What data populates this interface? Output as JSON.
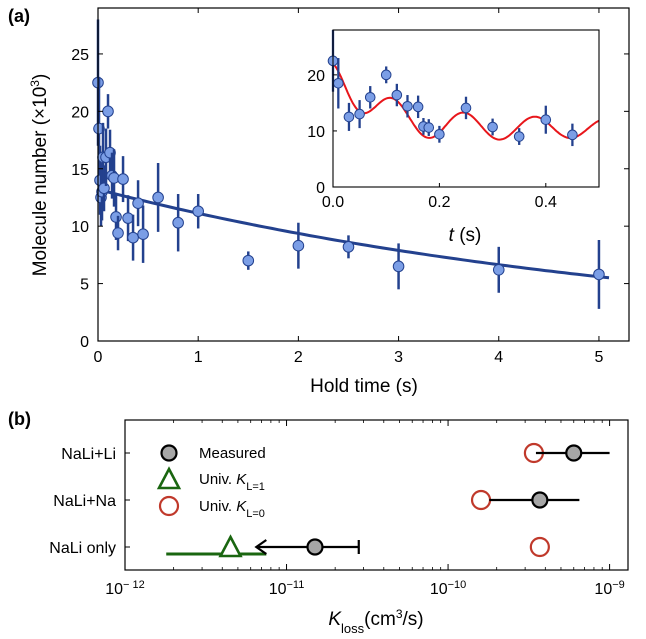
{
  "chart_data": [
    {
      "panel": "(a)",
      "type": "scatter",
      "xlabel": "Hold time (s)",
      "ylabel_main": "Molecule number (",
      "ylabel_unit": "×10",
      "ylabel_exp": "3",
      "ylabel_close": ")",
      "xlim": [
        0,
        5.3
      ],
      "ylim": [
        0,
        29
      ],
      "xticks": [
        0,
        1,
        2,
        3,
        4,
        5
      ],
      "yticks": [
        0,
        5,
        10,
        15,
        20,
        25
      ],
      "points": [
        {
          "x": 0.0,
          "y": 22.5,
          "err": 5.5
        },
        {
          "x": 0.01,
          "y": 18.5,
          "err": 4.5
        },
        {
          "x": 0.02,
          "y": 14.0,
          "err": 3.0
        },
        {
          "x": 0.03,
          "y": 12.5,
          "err": 2.5
        },
        {
          "x": 0.04,
          "y": 13.0,
          "err": 2.5
        },
        {
          "x": 0.05,
          "y": 16.0,
          "err": 3.0
        },
        {
          "x": 0.06,
          "y": 13.3,
          "err": 2.0
        },
        {
          "x": 0.08,
          "y": 16.0,
          "err": 2.5
        },
        {
          "x": 0.1,
          "y": 20.0,
          "err": 1.5
        },
        {
          "x": 0.12,
          "y": 16.4,
          "err": 2.0
        },
        {
          "x": 0.14,
          "y": 14.4,
          "err": 2.0
        },
        {
          "x": 0.16,
          "y": 14.2,
          "err": 2.5
        },
        {
          "x": 0.18,
          "y": 10.8,
          "err": 2.0
        },
        {
          "x": 0.2,
          "y": 9.4,
          "err": 1.5
        },
        {
          "x": 0.25,
          "y": 14.1,
          "err": 2.0
        },
        {
          "x": 0.3,
          "y": 10.7,
          "err": 2.0
        },
        {
          "x": 0.35,
          "y": 9.0,
          "err": 2.0
        },
        {
          "x": 0.4,
          "y": 12.0,
          "err": 2.0
        },
        {
          "x": 0.45,
          "y": 9.3,
          "err": 2.5
        },
        {
          "x": 0.6,
          "y": 12.5,
          "err": 3.0
        },
        {
          "x": 0.8,
          "y": 10.3,
          "err": 2.5
        },
        {
          "x": 1.0,
          "y": 11.3,
          "err": 1.5
        },
        {
          "x": 1.5,
          "y": 7.0,
          "err": 0.8
        },
        {
          "x": 2.0,
          "y": 8.3,
          "err": 2.0
        },
        {
          "x": 2.5,
          "y": 8.2,
          "err": 1.0
        },
        {
          "x": 3.0,
          "y": 6.5,
          "err": 2.0
        },
        {
          "x": 4.0,
          "y": 6.2,
          "err": 2.0
        },
        {
          "x": 5.0,
          "y": 5.8,
          "err": 3.0
        }
      ],
      "fit": {
        "x_range": [
          0.02,
          5.1
        ],
        "y0": 13.2,
        "k": 0.1716
      },
      "inset": {
        "type": "scatter",
        "xlabel_var": "t",
        "xlabel_unit": " (s)",
        "xlim": [
          0,
          0.5
        ],
        "ylim": [
          0,
          28
        ],
        "xticks": [
          0.0,
          0.2,
          0.4
        ],
        "xtick_labels": [
          "0.0",
          "0.2",
          "0.4"
        ],
        "yticks": [
          0,
          10,
          20
        ],
        "points": [
          {
            "x": 0.0,
            "y": 22.5,
            "err": 5.5
          },
          {
            "x": 0.01,
            "y": 18.5,
            "err": 4.5
          },
          {
            "x": 0.03,
            "y": 12.5,
            "err": 2.5
          },
          {
            "x": 0.05,
            "y": 13.0,
            "err": 2.5
          },
          {
            "x": 0.07,
            "y": 16.0,
            "err": 2.0
          },
          {
            "x": 0.1,
            "y": 20.0,
            "err": 1.5
          },
          {
            "x": 0.12,
            "y": 16.4,
            "err": 2.0
          },
          {
            "x": 0.14,
            "y": 14.4,
            "err": 2.0
          },
          {
            "x": 0.16,
            "y": 14.3,
            "err": 2.0
          },
          {
            "x": 0.17,
            "y": 10.8,
            "err": 1.5
          },
          {
            "x": 0.18,
            "y": 10.6,
            "err": 1.5
          },
          {
            "x": 0.2,
            "y": 9.4,
            "err": 1.5
          },
          {
            "x": 0.25,
            "y": 14.1,
            "err": 2.0
          },
          {
            "x": 0.3,
            "y": 10.7,
            "err": 1.5
          },
          {
            "x": 0.35,
            "y": 9.0,
            "err": 1.5
          },
          {
            "x": 0.4,
            "y": 12.0,
            "err": 2.5
          },
          {
            "x": 0.45,
            "y": 9.3,
            "err": 2.0
          }
        ],
        "fit": {
          "color": "#e8161b",
          "x_range": [
            0.0,
            0.5
          ],
          "offset": 6.0,
          "amp0": 6.8,
          "gamma": 2.3,
          "a": 13.5,
          "b": 0.3,
          "omega": 47.0,
          "phase": 0.0
        }
      }
    },
    {
      "panel": "(b)",
      "type": "scatter",
      "xscale": "log",
      "xlim": [
        1e-12,
        1.3e-09
      ],
      "xlabel_var": "K",
      "xlabel_sub": "loss",
      "xlabel_rest": "(cm",
      "xlabel_exp": "3",
      "xlabel_tail": "/s)",
      "xticks": [
        {
          "value": 1e-12,
          "base": "10",
          "exp": "− 12"
        },
        {
          "value": 1e-11,
          "base": "10",
          "exp": "−11"
        },
        {
          "value": 1e-10,
          "base": "10",
          "exp": "−10"
        },
        {
          "value": 1e-09,
          "base": "10",
          "exp": "−9"
        }
      ],
      "categories": [
        "NaLi+Li",
        "NaLi+Na",
        "NaLi only"
      ],
      "legend": [
        {
          "label": "Measured"
        },
        {
          "label_main": "Univ. ",
          "label_var": "K",
          "label_sub": "L=1"
        },
        {
          "label_main": "Univ. ",
          "label_var": "K",
          "label_sub": "L=0"
        }
      ],
      "measured": [
        {
          "category": "NaLi+Li",
          "value": 6e-10,
          "low": 3.5e-10,
          "high": 1e-09,
          "upper_limit": false
        },
        {
          "category": "NaLi+Na",
          "value": 3.7e-10,
          "low": 1.8e-10,
          "high": 6.5e-10,
          "upper_limit": false
        },
        {
          "category": "NaLi only",
          "value": 1.5e-11,
          "low": 6.5e-12,
          "high": 2.8e-11,
          "upper_limit": true
        }
      ],
      "univ_L0": [
        {
          "category": "NaLi+Li",
          "value": 3.4e-10
        },
        {
          "category": "NaLi+Na",
          "value": 1.6e-10
        },
        {
          "category": "NaLi only",
          "value": 3.7e-10
        }
      ],
      "univ_L1": [
        {
          "category": "NaLi only",
          "value": 4.5e-12,
          "low": 1.8e-12,
          "high": 7.5e-12
        }
      ],
      "colors": {
        "measured_fill": "#a6a6a6",
        "L0": "#c0392b",
        "L1": "#1a6610",
        "main_marker": "#7b9ee6",
        "main_line": "#23418e"
      }
    }
  ]
}
